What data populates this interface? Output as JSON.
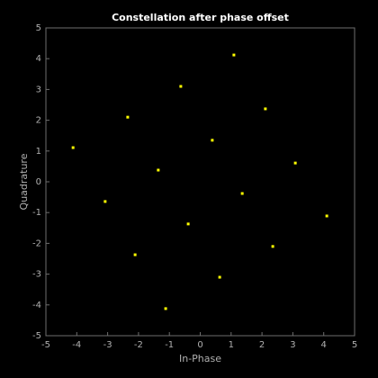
{
  "chart_data": {
    "type": "scatter",
    "title": "Constellation after phase offset",
    "xlabel": "In-Phase",
    "ylabel": "Quadrature",
    "x": [
      -4.12,
      -2.35,
      -0.63,
      1.09,
      -3.08,
      -1.36,
      0.39,
      2.11,
      -2.11,
      -0.39,
      1.36,
      3.08,
      -1.12,
      0.63,
      2.35,
      4.1
    ],
    "values": [
      1.11,
      2.1,
      3.1,
      4.12,
      -0.64,
      0.38,
      1.35,
      2.37,
      -2.37,
      -1.37,
      -0.38,
      0.61,
      -4.12,
      -3.1,
      -2.1,
      -1.11
    ],
    "color": "#ffff00",
    "xlim": [
      -5,
      5
    ],
    "ylim": [
      -5,
      5
    ],
    "xticks": [
      -5,
      -4,
      -3,
      -2,
      -1,
      0,
      1,
      2,
      3,
      4,
      5
    ],
    "yticks": [
      -5,
      -4,
      -3,
      -2,
      -1,
      0,
      1,
      2,
      3,
      4,
      5
    ]
  }
}
